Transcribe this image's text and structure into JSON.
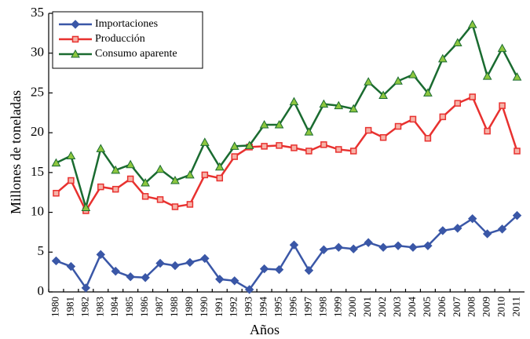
{
  "chart_data": {
    "type": "line",
    "xlabel": "Años",
    "ylabel": "Millones de toneladas",
    "categories": [
      "1980",
      "1981",
      "1982",
      "1983",
      "1984",
      "1985",
      "1986",
      "1987",
      "1988",
      "1989",
      "1990",
      "1991",
      "1992",
      "1993",
      "1994",
      "1995",
      "1996",
      "1997",
      "1998",
      "1999",
      "2000",
      "2001",
      "2002",
      "2003",
      "2004",
      "2005",
      "2006",
      "2007",
      "2008",
      "2009",
      "2010",
      "2011"
    ],
    "series": [
      {
        "name": "Importaciones",
        "color": "#3a57a7",
        "marker": "diamond",
        "values": [
          3.9,
          3.2,
          0.5,
          4.7,
          2.6,
          1.9,
          1.8,
          3.6,
          3.3,
          3.7,
          4.2,
          1.6,
          1.4,
          0.3,
          2.9,
          2.8,
          5.9,
          2.7,
          5.3,
          5.6,
          5.4,
          6.2,
          5.6,
          5.8,
          5.6,
          5.8,
          7.7,
          8.0,
          9.2,
          7.3,
          7.9,
          9.6
        ]
      },
      {
        "name": "Producción",
        "color": "#e8312f",
        "marker": "square",
        "values": [
          12.4,
          14.0,
          10.2,
          13.2,
          12.9,
          14.2,
          12.0,
          11.6,
          10.7,
          11.0,
          14.7,
          14.3,
          17.0,
          18.2,
          18.3,
          18.4,
          18.1,
          17.7,
          18.5,
          17.9,
          17.7,
          20.3,
          19.4,
          20.8,
          21.7,
          19.3,
          22.0,
          23.7,
          24.5,
          20.2,
          23.4,
          17.7
        ]
      },
      {
        "name": "Consumo aparente",
        "color": "#1a6b30",
        "marker": "triangle",
        "values": [
          16.2,
          17.1,
          10.6,
          18.0,
          15.3,
          16.0,
          13.7,
          15.4,
          14.0,
          14.7,
          18.8,
          15.7,
          18.3,
          18.4,
          21.0,
          21.0,
          23.9,
          20.1,
          23.6,
          23.4,
          23.0,
          26.4,
          24.7,
          26.5,
          27.3,
          25.0,
          29.3,
          31.3,
          33.6,
          27.1,
          30.6,
          27.0
        ]
      }
    ],
    "ylim": [
      0,
      35
    ],
    "yticks": [
      0,
      5,
      10,
      15,
      20,
      25,
      30,
      35
    ],
    "legend": "upper left",
    "grid": false
  }
}
